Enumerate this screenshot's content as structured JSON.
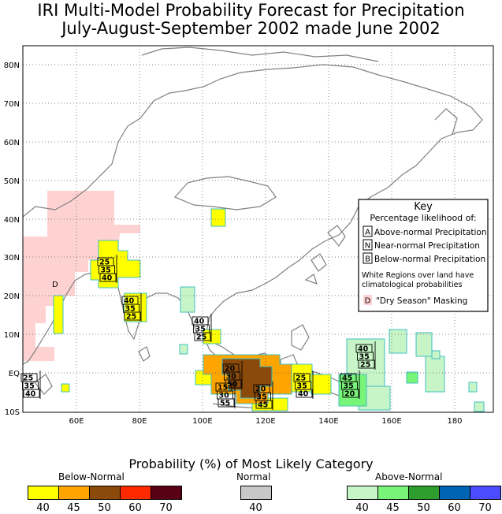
{
  "title": {
    "line1": "IRI Multi-Model Probability Forecast for Precipitation",
    "line2": "July-August-September 2002 made June 2002"
  },
  "axes": {
    "lat_labels": [
      "80N",
      "70N",
      "60N",
      "50N",
      "40N",
      "30N",
      "20N",
      "10N",
      "EQ",
      "10S"
    ],
    "lon_labels": [
      "60E",
      "80E",
      "100E",
      "120E",
      "140E",
      "160E",
      "180"
    ]
  },
  "key": {
    "heading": "Key",
    "subheading": "Percentage likelihood of:",
    "items": [
      {
        "letter": "A",
        "text": "Above-normal Precipitation"
      },
      {
        "letter": "N",
        "text": "Near-normal Precipitation"
      },
      {
        "letter": "B",
        "text": "Below-normal Precipitation"
      }
    ],
    "note_line1": "White Regions over land have",
    "note_line2": "climatological probabilities",
    "dry_letter": "D",
    "dry_text": "\"Dry Season\" Masking"
  },
  "map_labels": {
    "dry_marker": "D"
  },
  "forecast_boxes": [
    {
      "region": "northwest-india",
      "values": [
        "25",
        "35",
        "40"
      ]
    },
    {
      "region": "southern-india",
      "values": [
        "40",
        "35",
        "25"
      ]
    },
    {
      "region": "indochina",
      "values": [
        "40",
        "35",
        "25"
      ]
    },
    {
      "region": "east-africa",
      "values": [
        "25",
        "35",
        "40"
      ]
    },
    {
      "region": "borneo",
      "values": [
        "20",
        "30",
        "50"
      ]
    },
    {
      "region": "java",
      "values": [
        "15",
        "30",
        "55"
      ]
    },
    {
      "region": "sulawesi",
      "values": [
        "20",
        "35",
        "45"
      ]
    },
    {
      "region": "new-guinea-west",
      "values": [
        "25",
        "35",
        "40"
      ]
    },
    {
      "region": "new-guinea-east",
      "values": [
        "45",
        "35",
        "20"
      ]
    },
    {
      "region": "micronesia",
      "values": [
        "40",
        "35",
        "25"
      ]
    }
  ],
  "legend": {
    "title": "Probability (%) of Most Likely Category",
    "below": {
      "label": "Below-Normal",
      "colors": [
        "#ffff00",
        "#ffa500",
        "#8b4a0a",
        "#ff2a00",
        "#5a0014"
      ],
      "ticks": [
        "40",
        "45",
        "50",
        "60",
        "70"
      ]
    },
    "normal": {
      "label": "Normal",
      "colors": [
        "#c8c8c8"
      ],
      "ticks": [
        "40"
      ]
    },
    "above": {
      "label": "Above-Normal",
      "colors": [
        "#c8f5c8",
        "#78f578",
        "#2e9e2e",
        "#0064b4",
        "#4b4bff"
      ],
      "ticks": [
        "40",
        "45",
        "50",
        "60",
        "70"
      ]
    },
    "dry_color": "#ffd2d2",
    "coast_color": "#808080"
  }
}
